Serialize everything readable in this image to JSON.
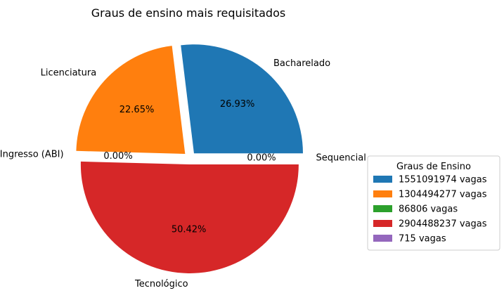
{
  "chart_data": {
    "type": "pie",
    "title": "Graus de ensino mais requisitados",
    "labels": [
      "Bacharelado",
      "Licenciatura",
      "Área Básica de Ingresso (ABI)",
      "Tecnológico",
      "Sequencial"
    ],
    "values": [
      1551091974,
      1304494277,
      86806,
      2904488237,
      715
    ],
    "percent_labels": [
      "26.93%",
      "22.65%",
      "0.00%",
      "50.42%",
      "0.00%"
    ],
    "colors": [
      "#1f77b4",
      "#ff7f0e",
      "#2ca02c",
      "#d62728",
      "#9467bd"
    ],
    "explode": true,
    "start_angle_deg": 0,
    "direction": "counterclockwise",
    "legend": {
      "title": "Graus de Ensino",
      "placement": "right",
      "entries": [
        "1551091974 vagas",
        "1304494277 vagas",
        "86806 vagas",
        "2904488237 vagas",
        "715 vagas"
      ]
    }
  }
}
